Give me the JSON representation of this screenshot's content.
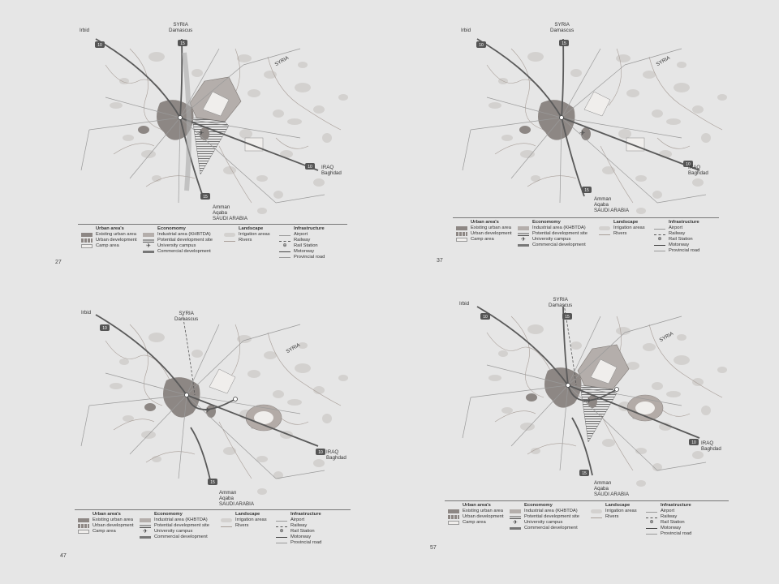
{
  "panels": [
    {
      "page": "27",
      "variant": 1
    },
    {
      "page": "37",
      "variant": 2
    },
    {
      "page": "47",
      "variant": 3
    },
    {
      "page": "57",
      "variant": 4
    }
  ],
  "labels": {
    "irbid": "Irbid",
    "syria_n1": "SYRIA",
    "syria_n2": "Damascus",
    "syria_ne": "SYRIA",
    "iraq1": "IRAQ",
    "iraq2": "Baghdad",
    "amman1": "Amman",
    "amman2": "Aqaba",
    "amman3": "SAUDI ARABIA",
    "shield_nw": "10",
    "shield_n": "15",
    "shield_e": "10",
    "shield_s": "15"
  },
  "legend": {
    "urban": {
      "title": "Urban area's",
      "items": [
        "Existing urban area",
        "Urban development",
        "Camp area"
      ]
    },
    "economy": {
      "title": "Economomy",
      "items": [
        "Industrial area (KHBTDA)",
        "Potential development site",
        "University campus",
        "Commercial development"
      ]
    },
    "landscape": {
      "title": "Landscape",
      "items": [
        "Irrigation areas",
        "Rivers"
      ]
    },
    "infra": {
      "title": "Infrastructure",
      "items": [
        "Airport",
        "Railway",
        "Rail Station",
        "Motorway",
        "Provincial road"
      ]
    }
  },
  "colors": {
    "background": "#e6e6e6",
    "urban": "#8d8784",
    "industrial": "#b4aeab",
    "camp": "#f0eeec",
    "landscape_blob": "#d3d1cf",
    "motorway": "#5a5a5a",
    "road": "#9a9a9a",
    "river": "#a89e98"
  }
}
